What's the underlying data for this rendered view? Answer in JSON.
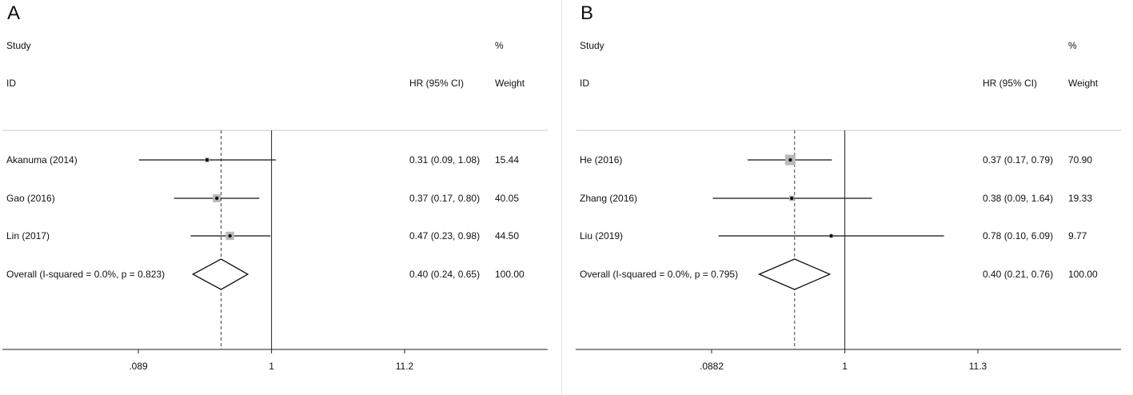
{
  "chart_data": [
    {
      "type": "forest",
      "panel_label": "A",
      "header": {
        "study": "Study",
        "id": "ID",
        "effect": "HR (95% CI)",
        "pct": "%",
        "weight": "Weight"
      },
      "ticks": [
        ".089",
        "1",
        "11.2"
      ],
      "xscale": "log",
      "xlim": [
        0.089,
        11.2
      ],
      "rows": [
        {
          "label": "Akanuma (2014)",
          "hr": 0.31,
          "lo": 0.09,
          "hi": 1.08,
          "ci_text": "0.31 (0.09, 1.08)",
          "weight_text": "15.44",
          "weight": 15.44
        },
        {
          "label": "Gao (2016)",
          "hr": 0.37,
          "lo": 0.17,
          "hi": 0.8,
          "ci_text": "0.37 (0.17, 0.80)",
          "weight_text": "40.05",
          "weight": 40.05
        },
        {
          "label": "Lin (2017)",
          "hr": 0.47,
          "lo": 0.23,
          "hi": 0.98,
          "ci_text": "0.47 (0.23, 0.98)",
          "weight_text": "44.50",
          "weight": 44.5
        }
      ],
      "overall": {
        "label": "Overall  (I-squared = 0.0%, p = 0.823)",
        "hr": 0.4,
        "lo": 0.24,
        "hi": 0.65,
        "ci_text": "0.40 (0.24, 0.65)",
        "weight_text": "100.00"
      }
    },
    {
      "type": "forest",
      "panel_label": "B",
      "header": {
        "study": "Study",
        "id": "ID",
        "effect": "HR (95% CI)",
        "pct": "%",
        "weight": "Weight"
      },
      "ticks": [
        ".0882",
        "1",
        "11.3"
      ],
      "xscale": "log",
      "xlim": [
        0.0882,
        11.3
      ],
      "rows": [
        {
          "label": "He (2016)",
          "hr": 0.37,
          "lo": 0.17,
          "hi": 0.79,
          "ci_text": "0.37 (0.17, 0.79)",
          "weight_text": "70.90",
          "weight": 70.9
        },
        {
          "label": "Zhang (2016)",
          "hr": 0.38,
          "lo": 0.09,
          "hi": 1.64,
          "ci_text": "0.38 (0.09, 1.64)",
          "weight_text": "19.33",
          "weight": 19.33
        },
        {
          "label": "Liu (2019)",
          "hr": 0.78,
          "lo": 0.1,
          "hi": 6.09,
          "ci_text": "0.78 (0.10, 6.09)",
          "weight_text": "9.77",
          "weight": 9.77
        }
      ],
      "overall": {
        "label": "Overall  (I-squared = 0.0%, p = 0.795)",
        "hr": 0.4,
        "lo": 0.21,
        "hi": 0.76,
        "ci_text": "0.40 (0.21, 0.76)",
        "weight_text": "100.00"
      }
    }
  ]
}
